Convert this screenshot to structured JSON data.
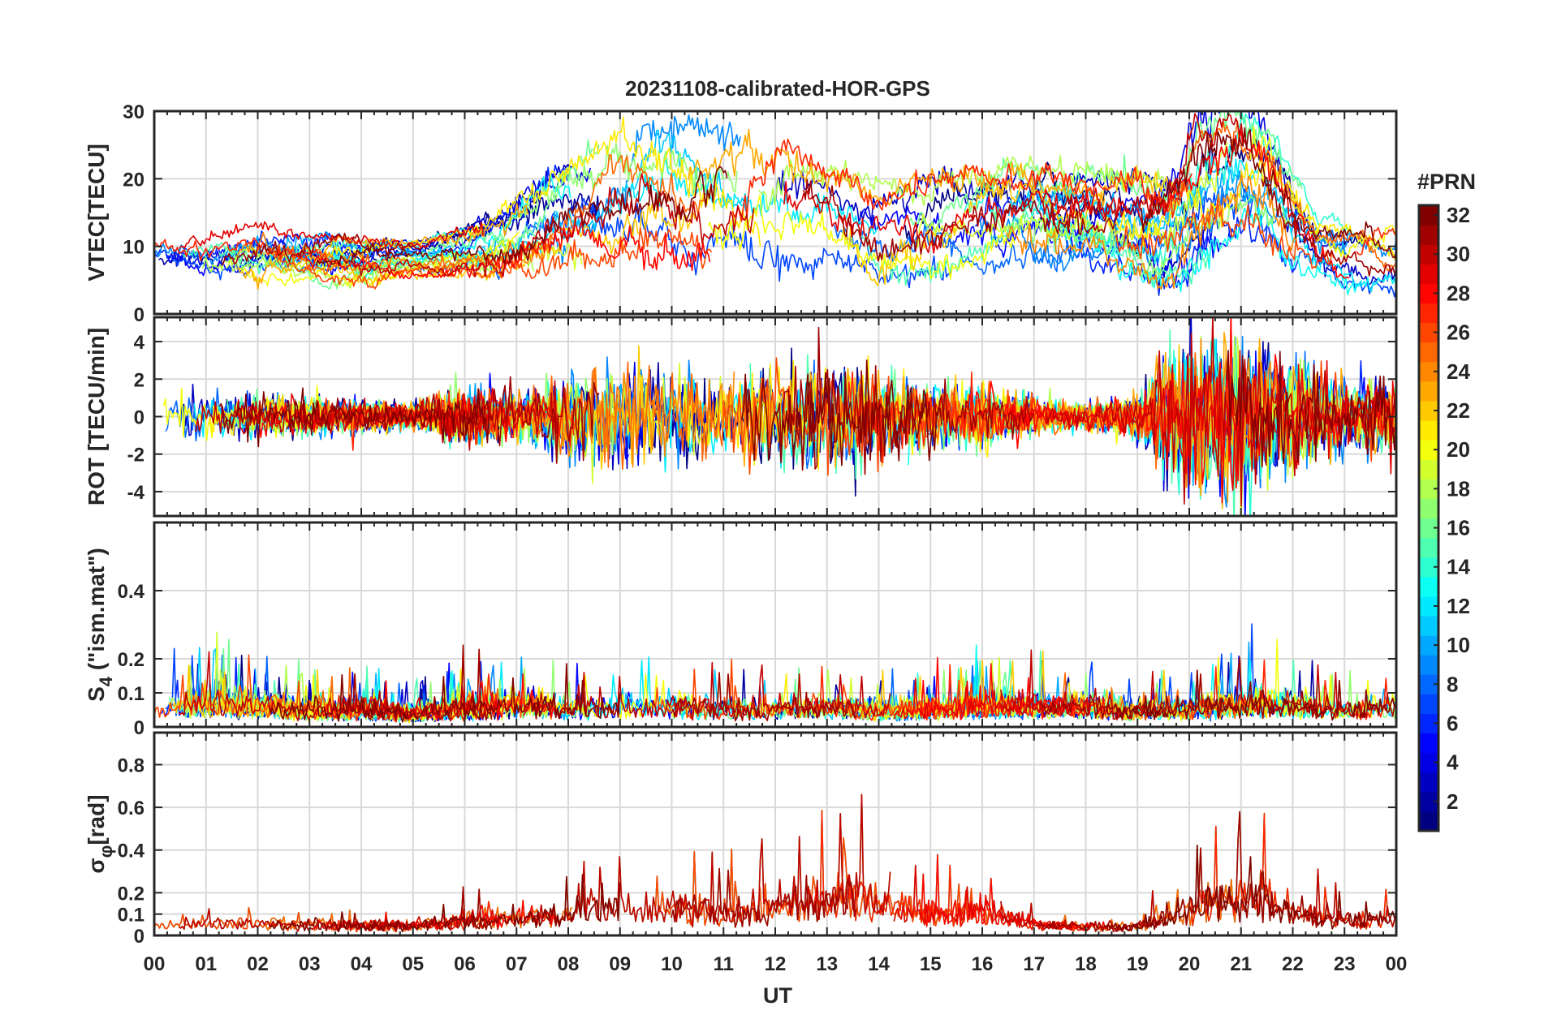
{
  "title": "20231108-calibrated-HOR-GPS",
  "colors": {
    "axis": "#262626",
    "grid": "#d9d9d9",
    "background": "#ffffff"
  },
  "chart_data": [
    {
      "type": "line",
      "name": "VTEC",
      "ylabel": "VTEC[TECU]",
      "ylim": [
        0,
        30
      ],
      "yticks": [
        0,
        10,
        20,
        30
      ],
      "ytick_labels": [
        "0",
        "10",
        "20",
        "30"
      ],
      "xlim": [
        0,
        24
      ],
      "grid": true,
      "series_note": "one line per GPS PRN 1-32, coloured by PRN",
      "envelope": {
        "x": [
          0,
          1,
          2,
          3,
          4,
          5,
          6,
          7,
          8,
          9,
          10,
          11,
          12,
          13,
          14,
          15,
          16,
          17,
          18,
          19,
          19.5,
          20,
          20.5,
          21,
          21.5,
          22,
          22.5,
          23,
          24
        ],
        "center": [
          9,
          8,
          8.5,
          8,
          7.5,
          8,
          9,
          11,
          15,
          17,
          18,
          17,
          16,
          15,
          12,
          13,
          14,
          15,
          14,
          13,
          12,
          16,
          20,
          22,
          20,
          14,
          10,
          9,
          8
        ],
        "spread": [
          3,
          3,
          4,
          3,
          3,
          2,
          3,
          5,
          6,
          8,
          9,
          8,
          8,
          6,
          6,
          6,
          6,
          6,
          6,
          6,
          7,
          9,
          9,
          8,
          8,
          6,
          4,
          4,
          4
        ]
      }
    },
    {
      "type": "line",
      "name": "ROT",
      "ylabel": "ROT [TECU/min]",
      "ylim": [
        -5.3,
        5.3
      ],
      "yticks": [
        -4,
        -2,
        0,
        2,
        4
      ],
      "ytick_labels": [
        "-4",
        "-2",
        "0",
        "2",
        "4"
      ],
      "xlim": [
        0,
        24
      ],
      "grid": true,
      "series_note": "one line per GPS PRN 1-32, coloured by PRN",
      "envelope": {
        "x": [
          0,
          2,
          4,
          5,
          6,
          7,
          8,
          9,
          10,
          11,
          12,
          13,
          14,
          15,
          16,
          17,
          18,
          19,
          19.5,
          20,
          21,
          22,
          23,
          24
        ],
        "center": [
          0,
          0,
          0,
          0,
          0,
          0,
          0,
          0,
          0,
          0,
          0,
          0,
          0,
          0,
          0,
          0,
          0,
          0,
          0,
          0,
          0,
          0,
          0,
          0
        ],
        "spread": [
          1,
          1.2,
          0.8,
          0.7,
          1.5,
          1.2,
          2.2,
          3,
          2.5,
          2.2,
          2.8,
          3,
          2.6,
          1.5,
          1.8,
          1,
          0.8,
          1.2,
          3.5,
          4,
          4,
          3,
          2,
          2
        ]
      }
    },
    {
      "type": "line",
      "name": "S4",
      "ylabel": "S4 (\"ism.mat\")",
      "ylabel_main": "S",
      "ylabel_sub": "4",
      "ylabel_rest": " (\"ism.mat\")",
      "ylim": [
        0,
        0.6
      ],
      "yticks": [
        0,
        0.1,
        0.2,
        0.4
      ],
      "ytick_labels": [
        "0",
        "0.1",
        "0.2",
        "0.4"
      ],
      "xlim": [
        0,
        24
      ],
      "grid": true,
      "series_note": "one line per GPS PRN 1-32, coloured by PRN",
      "envelope": {
        "x": [
          0,
          1,
          2,
          3,
          4,
          5,
          6,
          7,
          8,
          9,
          10,
          11,
          12,
          13,
          14,
          15,
          16,
          17,
          18,
          19,
          20,
          21,
          22,
          23,
          24
        ],
        "center": [
          0.04,
          0.05,
          0.05,
          0.04,
          0.04,
          0.03,
          0.04,
          0.05,
          0.04,
          0.05,
          0.05,
          0.04,
          0.04,
          0.05,
          0.04,
          0.04,
          0.05,
          0.05,
          0.05,
          0.04,
          0.04,
          0.05,
          0.05,
          0.04,
          0.05
        ],
        "spread": [
          0.08,
          0.12,
          0.1,
          0.07,
          0.08,
          0.06,
          0.1,
          0.11,
          0.09,
          0.1,
          0.09,
          0.08,
          0.08,
          0.08,
          0.07,
          0.08,
          0.1,
          0.08,
          0.08,
          0.07,
          0.08,
          0.12,
          0.1,
          0.07,
          0.09
        ]
      }
    },
    {
      "type": "line",
      "name": "sigma_phi",
      "ylabel": "σφ[rad]",
      "ylabel_main": "σ",
      "ylabel_sub": "φ",
      "ylabel_rest": "[rad]",
      "ylim": [
        0,
        0.95
      ],
      "yticks": [
        0,
        0.1,
        0.2,
        0.4,
        0.6,
        0.8
      ],
      "ytick_labels": [
        "0",
        "0.1",
        "0.2",
        "0.4",
        "0.6",
        "0.8"
      ],
      "xlim": [
        0,
        24
      ],
      "grid": true,
      "series_note": "one line per GPS PRN 1-32, coloured by PRN",
      "envelope": {
        "x": [
          0,
          2,
          4,
          5,
          6,
          7,
          8,
          8.7,
          9,
          10,
          11,
          12,
          13,
          13.7,
          14,
          15,
          16,
          17,
          18,
          19,
          20,
          20.5,
          21,
          21.5,
          22,
          23,
          24
        ],
        "center": [
          0.05,
          0.05,
          0.04,
          0.04,
          0.06,
          0.07,
          0.08,
          0.12,
          0.12,
          0.1,
          0.08,
          0.1,
          0.12,
          0.15,
          0.12,
          0.08,
          0.1,
          0.05,
          0.04,
          0.04,
          0.08,
          0.12,
          0.12,
          0.12,
          0.08,
          0.06,
          0.06
        ],
        "spread": [
          0.05,
          0.06,
          0.04,
          0.05,
          0.08,
          0.1,
          0.12,
          0.3,
          0.25,
          0.25,
          0.15,
          0.22,
          0.28,
          0.35,
          0.25,
          0.15,
          0.15,
          0.04,
          0.03,
          0.05,
          0.2,
          0.3,
          0.35,
          0.35,
          0.2,
          0.1,
          0.15
        ]
      }
    }
  ],
  "x_axis": {
    "label": "UT",
    "tick_labels": [
      "00",
      "01",
      "02",
      "03",
      "04",
      "05",
      "06",
      "07",
      "08",
      "09",
      "10",
      "11",
      "12",
      "13",
      "14",
      "15",
      "16",
      "17",
      "18",
      "19",
      "20",
      "21",
      "22",
      "23",
      "00"
    ],
    "range_hours": [
      0,
      24
    ]
  },
  "colorbar": {
    "title": "#PRN",
    "range": [
      1,
      32
    ],
    "tick_labels": [
      "2",
      "4",
      "6",
      "8",
      "10",
      "12",
      "14",
      "16",
      "18",
      "20",
      "22",
      "24",
      "26",
      "28",
      "30",
      "32"
    ],
    "tick_values": [
      2,
      4,
      6,
      8,
      10,
      12,
      14,
      16,
      18,
      20,
      22,
      24,
      26,
      28,
      30,
      32
    ],
    "colormap": "jet"
  }
}
